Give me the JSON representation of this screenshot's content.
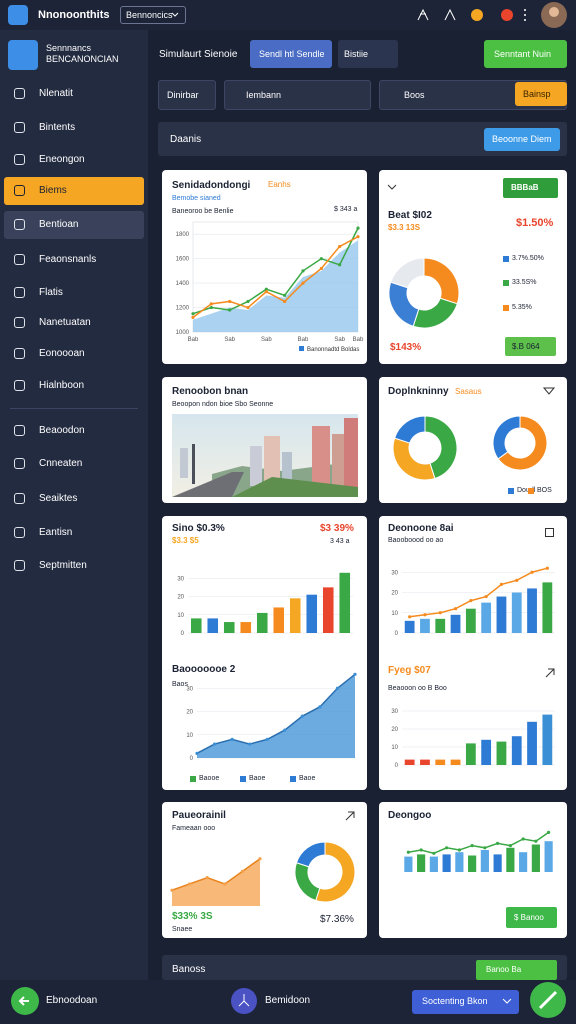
{
  "topbar": {
    "app_name": "Nnonoonthits",
    "dropdown": "Bennoncics"
  },
  "sidebar": {
    "title": "Sennnancs",
    "subtitle": "BENCANONCIAN",
    "menu": [
      "Nlenatit",
      "Bintents",
      "Eneongon",
      "Biems",
      "Bentioan",
      "Feaonsnanls",
      "Flatis",
      "Nanetuatan",
      "Eonoooan",
      "Hialnboon"
    ],
    "menu_secondary": [
      "Beaoodon",
      "Cnneaten",
      "Seaiktes",
      "Eantisn",
      "Septmitten"
    ]
  },
  "toolbar": {
    "label": "Simulaurt Sienoie",
    "tab_active": "Sendl htl Sendle",
    "tab": "Bistiie",
    "primary_button": "Senntant Nuin"
  },
  "filters": {
    "field": "Dinirbar",
    "search": "Iembann",
    "field2": "Boos",
    "button": "Bainsp"
  },
  "section": {
    "title": "Daanis",
    "button": "Beoonne Diem"
  },
  "cards": [
    {
      "title": "Senidadondongi",
      "tag": "Eanhs",
      "subtitle": "Bemobe sianed",
      "note": "$ 343 a",
      "caption": "Baneoroo be Benlie"
    },
    {
      "title": "Beat $I02",
      "subtitle": "$3.3 13S",
      "value": "$1.50%",
      "button": "BBBaB",
      "legend": [
        {
          "label": "3.7%.50%",
          "color": "#2e7bd6"
        },
        {
          "label": "33.5S%",
          "color": "#3aa845"
        },
        {
          "label": "5.35%",
          "color": "#f58b1f"
        }
      ],
      "total": "$143%",
      "action": "$.B 064"
    },
    {
      "title": "Renoobon bnan",
      "subtitle": "Beoopon ndon bioe Sbo Seonne"
    },
    {
      "title": "Doplnkninny",
      "tag": "Sasaus",
      "legend": [
        {
          "label": "Doudl",
          "color": "#2e7bd6"
        },
        {
          "label": "BOS",
          "color": "#f58b1f"
        }
      ]
    },
    {
      "title": "Sino $0.3%",
      "subtitle": "$3.3 $5",
      "value": "$3 39%",
      "note": "3 43 a",
      "title2": "Baooooooe 2",
      "subtitle2": "Baos",
      "legend": [
        {
          "label": "Baooe",
          "color": "#3aa845"
        },
        {
          "label": "Baoe",
          "color": "#2e7bd6"
        },
        {
          "label": "Baoe",
          "color": "#2e7bd6"
        }
      ]
    },
    {
      "title": "Deonoone 8ai",
      "subtitle": "Baooboood oo ao",
      "title2": "Fyeg $07",
      "subtitle2": "Beaooon oo B Boo"
    },
    {
      "title": "Paueorainil",
      "subtitle": "Fameaan ooo",
      "value": "$33% 3S",
      "caption": "Snaee",
      "total": "$7.36%"
    },
    {
      "title": "Deongoo",
      "button": "$ Banoo"
    }
  ],
  "charts": [
    {
      "type": "line",
      "ylim": [
        1000,
        1900
      ],
      "yticks": [
        1000,
        1200,
        1400,
        1600,
        1800
      ],
      "categories": [
        "Bab",
        null,
        "Sab",
        null,
        "Sab",
        null,
        "Bab",
        null,
        "Sab",
        "Bab"
      ],
      "series": [
        {
          "name": "Banonnadtd Boldas",
          "color": "#8fc3ec",
          "fill": true,
          "values": [
            1100,
            1150,
            1200,
            1180,
            1300,
            1280,
            1450,
            1500,
            1650,
            1750
          ]
        },
        {
          "color": "#3aa845",
          "values": [
            1150,
            1200,
            1180,
            1250,
            1350,
            1300,
            1500,
            1600,
            1550,
            1850
          ]
        },
        {
          "color": "#f58b1f",
          "values": [
            1120,
            1230,
            1250,
            1200,
            1330,
            1250,
            1400,
            1520,
            1700,
            1780
          ]
        }
      ]
    },
    {
      "type": "donut",
      "values": [
        30,
        25,
        25,
        20
      ],
      "colors": [
        "#f58b1f",
        "#3aa845",
        "#3b7fd4",
        "#e6e9ee"
      ]
    },
    {
      "type": "donut",
      "values": [
        45,
        35,
        20
      ],
      "colors": [
        "#3aa845",
        "#f5a623",
        "#2e7bd6"
      ]
    },
    {
      "type": "donut",
      "values": [
        65,
        35
      ],
      "colors": [
        "#f58b1f",
        "#2e7bd6"
      ]
    },
    {
      "type": "bar",
      "ylim": [
        0,
        40
      ],
      "yticks": [
        0,
        10,
        20,
        30
      ],
      "values": [
        8,
        8,
        6,
        6,
        11,
        14,
        19,
        21,
        25,
        33
      ],
      "colors": [
        "#3aa845",
        "#2e7bd6",
        "#3aa845",
        "#f58b1f",
        "#3aa845",
        "#f58b1f",
        "#f5a623",
        "#2e7bd6",
        "#e8452c",
        "#3aa845"
      ]
    },
    {
      "type": "area",
      "ylim": [
        0,
        40
      ],
      "yticks": [
        0,
        10,
        20,
        30
      ],
      "color": "#3b8fd4",
      "values": [
        2,
        6,
        8,
        6,
        8,
        12,
        18,
        22,
        30,
        36
      ]
    },
    {
      "type": "barline",
      "ylim": [
        0,
        40
      ],
      "yticks": [
        0,
        10,
        20,
        30
      ],
      "values": [
        6,
        7,
        7,
        9,
        12,
        15,
        18,
        20,
        22,
        25
      ],
      "colors": [
        "#2e7bd6",
        "#5aa9e6",
        "#3aa845",
        "#2e7bd6",
        "#3aa845",
        "#5aa9e6",
        "#2e7bd6",
        "#5aa9e6",
        "#2e7bd6",
        "#3aa845"
      ],
      "line": [
        8,
        9,
        10,
        12,
        16,
        18,
        24,
        26,
        30,
        32
      ],
      "line_color": "#f58b1f"
    },
    {
      "type": "bar",
      "ylim": [
        0,
        40
      ],
      "yticks": [
        0,
        10,
        20,
        30
      ],
      "values": [
        3,
        3,
        3,
        3,
        12,
        14,
        13,
        16,
        24,
        28
      ],
      "colors": [
        "#e8452c",
        "#e8452c",
        "#f58b1f",
        "#f58b1f",
        "#3aa845",
        "#2e7bd6",
        "#3aa845",
        "#2e7bd6",
        "#2e7bd6",
        "#3b8fd4"
      ]
    },
    {
      "type": "area",
      "ylim": [
        0,
        40
      ],
      "color": "#f5a04a",
      "values": [
        10,
        14,
        18,
        14,
        22,
        30
      ]
    },
    {
      "type": "donut",
      "values": [
        55,
        25,
        20
      ],
      "colors": [
        "#f5a623",
        "#3aa845",
        "#2e7bd6"
      ]
    },
    {
      "type": "barline",
      "ylim": [
        0,
        40
      ],
      "values": [
        14,
        16,
        14,
        16,
        18,
        15,
        20,
        16,
        22,
        18,
        25,
        28
      ],
      "colors": [
        "#5aa9e6",
        "#3aa845",
        "#5aa9e6",
        "#2e7bd6",
        "#5aa9e6",
        "#3aa845",
        "#5aa9e6",
        "#2e7bd6",
        "#3aa845",
        "#5aa9e6",
        "#3aa845",
        "#5aa9e6"
      ],
      "line": [
        18,
        20,
        17,
        22,
        20,
        24,
        22,
        26,
        24,
        30,
        28,
        36
      ],
      "line_color": "#3aa845"
    }
  ],
  "footer_strip": {
    "title": "Banoss",
    "button": "Banoo Ba"
  },
  "bottom_bar": {
    "left": "Ebnoodoan",
    "center": "Bemidoon",
    "dropdown": "Soctenting Bkon"
  }
}
